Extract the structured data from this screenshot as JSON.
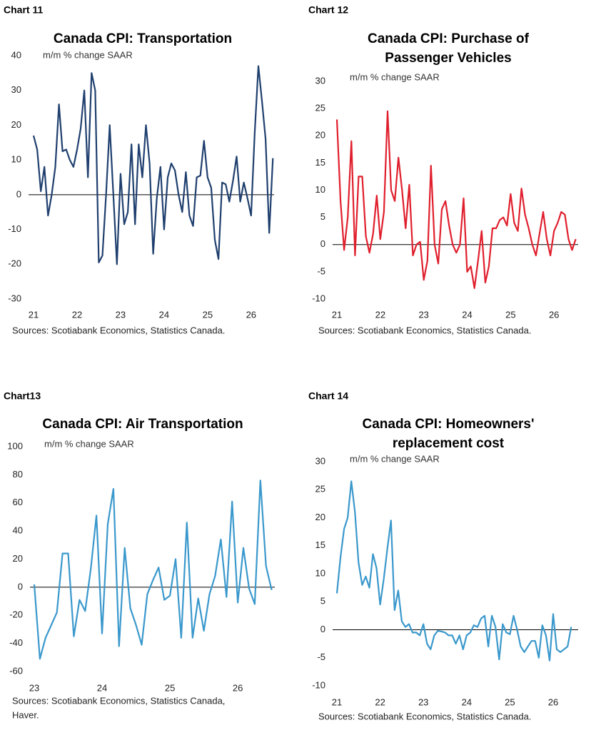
{
  "chart_data": [
    {
      "type": "line",
      "chart_label": "Chart 11",
      "title": [
        "Canada CPI: Transportation"
      ],
      "subtitle": "m/m % change SAAR",
      "source": [
        "Sources: Scotiabank Economics, Statistics Canada."
      ],
      "color": "#1f3f6e",
      "categories": [
        "21",
        null,
        null,
        null,
        null,
        null,
        null,
        null,
        null,
        null,
        null,
        null,
        "22",
        null,
        null,
        null,
        null,
        null,
        null,
        null,
        null,
        null,
        null,
        null,
        "23",
        null,
        null,
        null,
        null,
        null,
        null,
        null,
        null,
        null,
        null,
        null,
        "24",
        null,
        null,
        null,
        null,
        null,
        null,
        null,
        null,
        null,
        null,
        null,
        "25",
        null,
        null,
        null,
        null,
        null,
        null,
        null,
        null,
        null,
        null,
        null,
        "26",
        null,
        null,
        null,
        null,
        null,
        null
      ],
      "values": [
        17,
        13,
        1,
        8,
        -6,
        0,
        8,
        26,
        12.5,
        13,
        10,
        8,
        13,
        19,
        30,
        5,
        35,
        30,
        -19.5,
        -17.5,
        0,
        20,
        0,
        -20,
        6,
        -8.5,
        -5,
        14.5,
        -8.5,
        14.5,
        5,
        20,
        9,
        -17,
        -1,
        8,
        -10,
        5,
        9,
        7,
        0,
        -5,
        6.5,
        -6,
        -9,
        5,
        5.5,
        15.5,
        5,
        2,
        -13,
        -18.5,
        3.5,
        3,
        -2,
        4,
        11,
        -2,
        3.5,
        -1,
        -6,
        18,
        37,
        27,
        16,
        -11,
        10.5
      ],
      "ylim": [
        -30,
        40
      ],
      "yticks": [
        -30,
        -20,
        -10,
        0,
        10,
        20,
        30,
        40
      ]
    },
    {
      "type": "line",
      "chart_label": "Chart 12",
      "title": [
        "Canada CPI: Purchase of",
        "Passenger Vehicles"
      ],
      "subtitle": "m/m % change SAAR",
      "source": [
        "Sources: Scotiabank Economics, Statistics Canada."
      ],
      "color": "#e01f2d",
      "categories": [
        "21",
        null,
        null,
        null,
        null,
        null,
        null,
        null,
        null,
        null,
        null,
        null,
        "22",
        null,
        null,
        null,
        null,
        null,
        null,
        null,
        null,
        null,
        null,
        null,
        "23",
        null,
        null,
        null,
        null,
        null,
        null,
        null,
        null,
        null,
        null,
        null,
        "24",
        null,
        null,
        null,
        null,
        null,
        null,
        null,
        null,
        null,
        null,
        null,
        "25",
        null,
        null,
        null,
        null,
        null,
        null,
        null,
        null,
        null,
        null,
        null,
        "26",
        null,
        null,
        null,
        null,
        null,
        null
      ],
      "values": [
        23,
        8,
        -1,
        5,
        19,
        -2,
        12.5,
        12.5,
        1.5,
        -1.5,
        2,
        9,
        1,
        6,
        24.5,
        10,
        8,
        16,
        10,
        3,
        11,
        -2,
        0,
        0.5,
        -6.5,
        -3,
        14.5,
        0,
        -3.5,
        6.5,
        8,
        3.5,
        0,
        -1.5,
        0,
        8.5,
        -5,
        -4,
        -8,
        -3,
        2.5,
        -7,
        -4,
        3,
        3,
        4.5,
        5,
        3.5,
        9.3,
        4,
        2.5,
        10.3,
        5.5,
        3,
        0,
        -2,
        2,
        6,
        1,
        -2,
        2.5,
        4,
        6,
        5.5,
        1,
        -1,
        1
      ],
      "ylim": [
        -10,
        30
      ],
      "yticks": [
        -10,
        -5,
        0,
        5,
        10,
        15,
        20,
        25,
        30
      ]
    },
    {
      "type": "line",
      "chart_label": "Chart13",
      "title": [
        "Canada CPI: Air Transportation"
      ],
      "subtitle": "m/m % change SAAR",
      "source": [
        "Sources: Scotiabank Economics, Statistics Canada,",
        "Haver."
      ],
      "color": "#3a98cc",
      "categories": [
        "23",
        null,
        null,
        null,
        null,
        null,
        null,
        null,
        null,
        null,
        null,
        null,
        "24",
        null,
        null,
        null,
        null,
        null,
        null,
        null,
        null,
        null,
        null,
        null,
        "25",
        null,
        null,
        null,
        null,
        null,
        null,
        null,
        null,
        null,
        null,
        null,
        "26",
        null,
        null,
        null,
        null,
        null,
        null
      ],
      "values": [
        2,
        -51,
        -36,
        -27,
        -18,
        24,
        24,
        -35,
        -9,
        -17,
        13,
        51,
        -33,
        45,
        70,
        -42,
        28,
        -15,
        -27,
        -41,
        -5,
        5,
        14,
        -9,
        -6,
        20,
        -36,
        46,
        -36,
        -8,
        -31,
        -5,
        8,
        34,
        -7,
        61,
        -11,
        28,
        -1,
        -12,
        76,
        15,
        -2
      ],
      "ylim": [
        -60,
        100
      ],
      "yticks": [
        -60,
        -40,
        -20,
        0,
        20,
        40,
        60,
        80,
        100
      ]
    },
    {
      "type": "line",
      "chart_label": "Chart 14",
      "title": [
        "Canada CPI: Homeowners'",
        "replacement cost"
      ],
      "subtitle": "m/m % change SAAR",
      "source": [
        "Sources: Scotiabank Economics, Statistics Canada."
      ],
      "color": "#3a98cc",
      "categories": [
        "21",
        null,
        null,
        null,
        null,
        null,
        null,
        null,
        null,
        null,
        null,
        null,
        "22",
        null,
        null,
        null,
        null,
        null,
        null,
        null,
        null,
        null,
        null,
        null,
        "23",
        null,
        null,
        null,
        null,
        null,
        null,
        null,
        null,
        null,
        null,
        null,
        "24",
        null,
        null,
        null,
        null,
        null,
        null,
        null,
        null,
        null,
        null,
        null,
        "25",
        null,
        null,
        null,
        null,
        null,
        null,
        null,
        null,
        null,
        null,
        null,
        "26",
        null,
        null,
        null,
        null,
        null
      ],
      "values": [
        6.5,
        13,
        18,
        20,
        26.5,
        21,
        12,
        8,
        9.5,
        7.5,
        13.5,
        11,
        4.5,
        9,
        14.5,
        19.5,
        3.5,
        7,
        1.5,
        0.5,
        1,
        -0.5,
        -0.5,
        -1,
        1,
        -2.5,
        -3.5,
        -1,
        -0.2,
        -0.3,
        -0.5,
        -1,
        -1,
        -2.5,
        -1,
        -3.5,
        -1,
        -0.5,
        0.8,
        0.5,
        2,
        2.5,
        -3,
        2.5,
        0.5,
        -5.3,
        1,
        -0.5,
        -0.8,
        2.5,
        0,
        -3,
        -4,
        -3,
        -2,
        -2,
        -5,
        0.8,
        -1,
        -5.5,
        2.8,
        -3.5,
        -4,
        -3.5,
        -3,
        0.5
      ],
      "ylim": [
        -10,
        30
      ],
      "yticks": [
        -10,
        -5,
        0,
        5,
        10,
        15,
        20,
        25,
        30
      ]
    }
  ]
}
